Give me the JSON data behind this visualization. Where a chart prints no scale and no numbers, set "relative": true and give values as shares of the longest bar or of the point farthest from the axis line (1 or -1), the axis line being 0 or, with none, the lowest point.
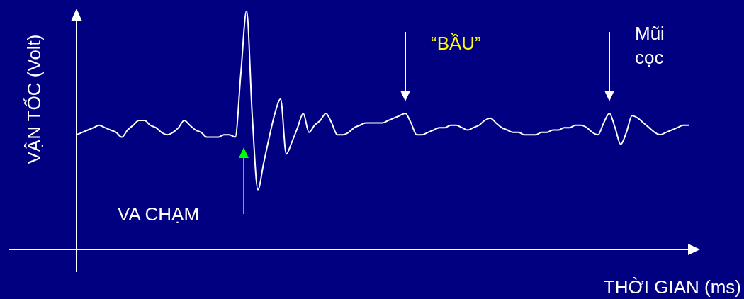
{
  "chart_data": {
    "type": "line",
    "relative": true,
    "xlabel": "THỜI GIAN (ms)",
    "ylabel": "VẬN TỐC (Volt)",
    "marker": "none",
    "line_style": "solid",
    "color": "#ffffff",
    "categories": [
      null,
      null,
      null,
      null,
      null,
      null,
      null,
      null,
      null,
      null,
      null,
      null,
      null,
      null,
      null,
      null,
      null,
      null,
      null,
      null,
      null,
      null,
      null,
      null,
      null,
      null,
      null,
      null,
      null,
      null,
      null,
      null,
      null,
      null,
      null,
      null,
      null,
      null,
      null,
      null,
      null,
      null,
      null,
      null,
      null,
      null,
      null,
      null,
      null,
      null,
      null,
      null,
      null,
      null,
      null,
      null,
      null,
      null,
      null,
      null,
      null,
      null,
      null,
      null,
      null,
      null,
      null,
      null,
      null,
      null,
      null,
      null,
      null,
      null,
      null,
      null,
      null,
      null,
      null,
      null,
      null,
      null,
      null,
      null,
      null,
      null,
      null,
      null,
      null,
      null,
      null,
      null,
      null,
      null,
      null,
      null,
      null,
      null,
      null,
      null,
      null,
      null,
      null,
      null,
      null,
      null,
      null,
      null,
      null
    ],
    "values": [
      0.48,
      0.49,
      0.5,
      0.51,
      0.52,
      0.51,
      0.5,
      0.49,
      0.47,
      0.5,
      0.52,
      0.54,
      0.54,
      0.52,
      0.51,
      0.49,
      0.48,
      0.49,
      0.51,
      0.54,
      0.52,
      0.5,
      0.49,
      0.47,
      0.47,
      0.47,
      0.48,
      0.48,
      0.47,
      0.74,
      1.0,
      0.56,
      0.25,
      0.36,
      0.47,
      0.57,
      0.63,
      0.4,
      0.45,
      0.51,
      0.57,
      0.49,
      0.52,
      0.54,
      0.57,
      0.53,
      0.48,
      0.48,
      0.49,
      0.51,
      0.52,
      0.53,
      0.53,
      0.53,
      0.53,
      0.54,
      0.55,
      0.56,
      0.57,
      0.53,
      0.48,
      0.48,
      0.49,
      0.5,
      0.51,
      0.51,
      0.52,
      0.52,
      0.51,
      0.5,
      0.51,
      0.52,
      0.54,
      0.55,
      0.53,
      0.51,
      0.5,
      0.49,
      0.49,
      0.48,
      0.48,
      0.48,
      0.49,
      0.49,
      0.5,
      0.5,
      0.51,
      0.51,
      0.52,
      0.52,
      0.51,
      0.49,
      0.48,
      0.53,
      0.57,
      0.51,
      0.44,
      0.49,
      0.56,
      0.55,
      0.53,
      0.51,
      0.49,
      0.48,
      0.49,
      0.5,
      0.51,
      0.52,
      0.52
    ],
    "annotations": [
      "VA CHẠM",
      "“BẦU”",
      "Mũi cọc"
    ]
  }
}
